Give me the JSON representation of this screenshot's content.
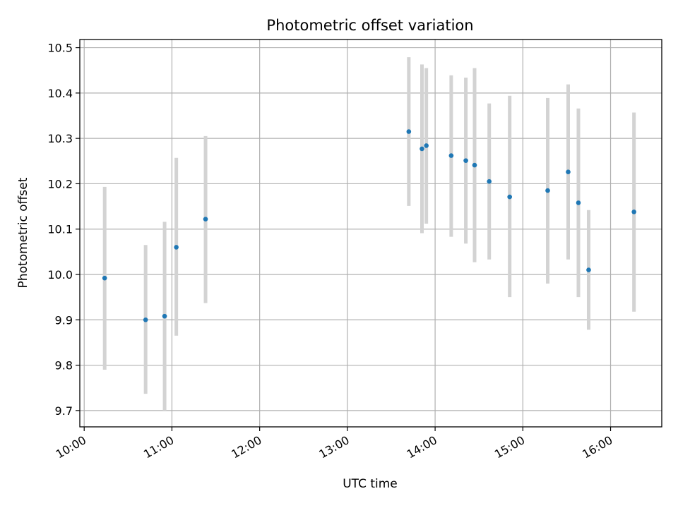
{
  "chart_data": {
    "type": "scatter",
    "title": "Photometric offset variation",
    "xlabel": "UTC time",
    "ylabel": "Photometric offset",
    "xlim": [
      "09:57",
      "16:35"
    ],
    "ylim": [
      9.664,
      10.518
    ],
    "xticks": [
      "10:00",
      "11:00",
      "12:00",
      "13:00",
      "14:00",
      "15:00",
      "16:00"
    ],
    "yticks": [
      9.7,
      9.8,
      9.9,
      10.0,
      10.1,
      10.2,
      10.3,
      10.4,
      10.5
    ],
    "ytick_labels": [
      "9.7",
      "9.8",
      "9.9",
      "10.0",
      "10.1",
      "10.2",
      "10.3",
      "10.4",
      "10.5"
    ],
    "grid": true,
    "colors": {
      "point": "#1f77b4",
      "errorbar": "#d3d3d3"
    },
    "points": [
      {
        "x": "10:14",
        "y": 9.992,
        "low": 9.79,
        "high": 10.193
      },
      {
        "x": "10:42",
        "y": 9.9,
        "low": 9.737,
        "high": 10.065
      },
      {
        "x": "10:55",
        "y": 9.908,
        "low": 9.7,
        "high": 10.116
      },
      {
        "x": "11:03",
        "y": 10.06,
        "low": 9.865,
        "high": 10.257
      },
      {
        "x": "11:23",
        "y": 10.122,
        "low": 9.937,
        "high": 10.305
      },
      {
        "x": "13:42",
        "y": 10.315,
        "low": 10.151,
        "high": 10.479
      },
      {
        "x": "13:51",
        "y": 10.277,
        "low": 10.091,
        "high": 10.463
      },
      {
        "x": "13:54",
        "y": 10.284,
        "low": 10.112,
        "high": 10.455
      },
      {
        "x": "14:11",
        "y": 10.262,
        "low": 10.083,
        "high": 10.439
      },
      {
        "x": "14:21",
        "y": 10.251,
        "low": 10.068,
        "high": 10.434
      },
      {
        "x": "14:27",
        "y": 10.241,
        "low": 10.027,
        "high": 10.455
      },
      {
        "x": "14:37",
        "y": 10.205,
        "low": 10.033,
        "high": 10.377
      },
      {
        "x": "14:51",
        "y": 10.171,
        "low": 9.95,
        "high": 10.394
      },
      {
        "x": "15:17",
        "y": 10.185,
        "low": 9.98,
        "high": 10.389
      },
      {
        "x": "15:31",
        "y": 10.226,
        "low": 10.033,
        "high": 10.419
      },
      {
        "x": "15:38",
        "y": 10.158,
        "low": 9.95,
        "high": 10.366
      },
      {
        "x": "15:45",
        "y": 10.01,
        "low": 9.878,
        "high": 10.142
      },
      {
        "x": "16:16",
        "y": 10.138,
        "low": 9.918,
        "high": 10.357
      }
    ]
  }
}
